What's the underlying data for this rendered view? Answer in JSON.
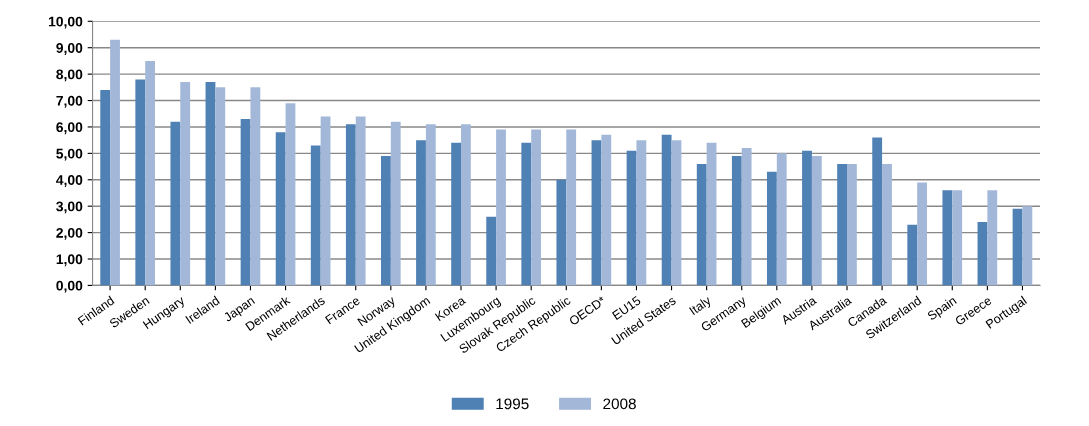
{
  "chart_data": {
    "type": "bar",
    "categories": [
      "Finland",
      "Sweden",
      "Hungary",
      "Ireland",
      "Japan",
      "Denmark",
      "Netherlands",
      "France",
      "Norway",
      "United Kingdom",
      "Korea",
      "Luxembourg",
      "Slovak Republic",
      "Czech Republic",
      "OECD*",
      "EU15",
      "United States",
      "Italy",
      "Germany",
      "Belgium",
      "Austria",
      "Australia",
      "Canada",
      "Switzerland",
      "Spain",
      "Greece",
      "Portugal"
    ],
    "series": [
      {
        "name": "1995",
        "color": "#4f81b4",
        "values": [
          7.4,
          7.8,
          6.2,
          7.7,
          6.3,
          5.8,
          5.3,
          6.1,
          4.9,
          5.5,
          5.4,
          2.6,
          5.4,
          4.0,
          5.5,
          5.1,
          5.7,
          4.6,
          4.9,
          4.3,
          5.1,
          4.6,
          5.6,
          2.3,
          3.6,
          2.4,
          2.9
        ]
      },
      {
        "name": "2008",
        "color": "#a3b8d9",
        "values": [
          9.3,
          8.5,
          7.7,
          7.5,
          7.5,
          6.9,
          6.4,
          6.4,
          6.2,
          6.1,
          6.1,
          5.9,
          5.9,
          5.9,
          5.7,
          5.5,
          5.5,
          5.4,
          5.2,
          5.0,
          4.9,
          4.6,
          4.6,
          3.9,
          3.6,
          3.6,
          3.0
        ]
      }
    ],
    "ylim": [
      0,
      10
    ],
    "yticks": [
      {
        "value": 0,
        "label": "0,00"
      },
      {
        "value": 1,
        "label": "1,00"
      },
      {
        "value": 2,
        "label": "2,00"
      },
      {
        "value": 3,
        "label": "3,00"
      },
      {
        "value": 4,
        "label": "4,00"
      },
      {
        "value": 5,
        "label": "5,00"
      },
      {
        "value": 6,
        "label": "6,00"
      },
      {
        "value": 7,
        "label": "7,00"
      },
      {
        "value": 8,
        "label": "8,00"
      },
      {
        "value": 9,
        "label": "9,00"
      },
      {
        "value": 10,
        "label": "10,00"
      }
    ],
    "grid": "y",
    "legend": "bottom"
  }
}
